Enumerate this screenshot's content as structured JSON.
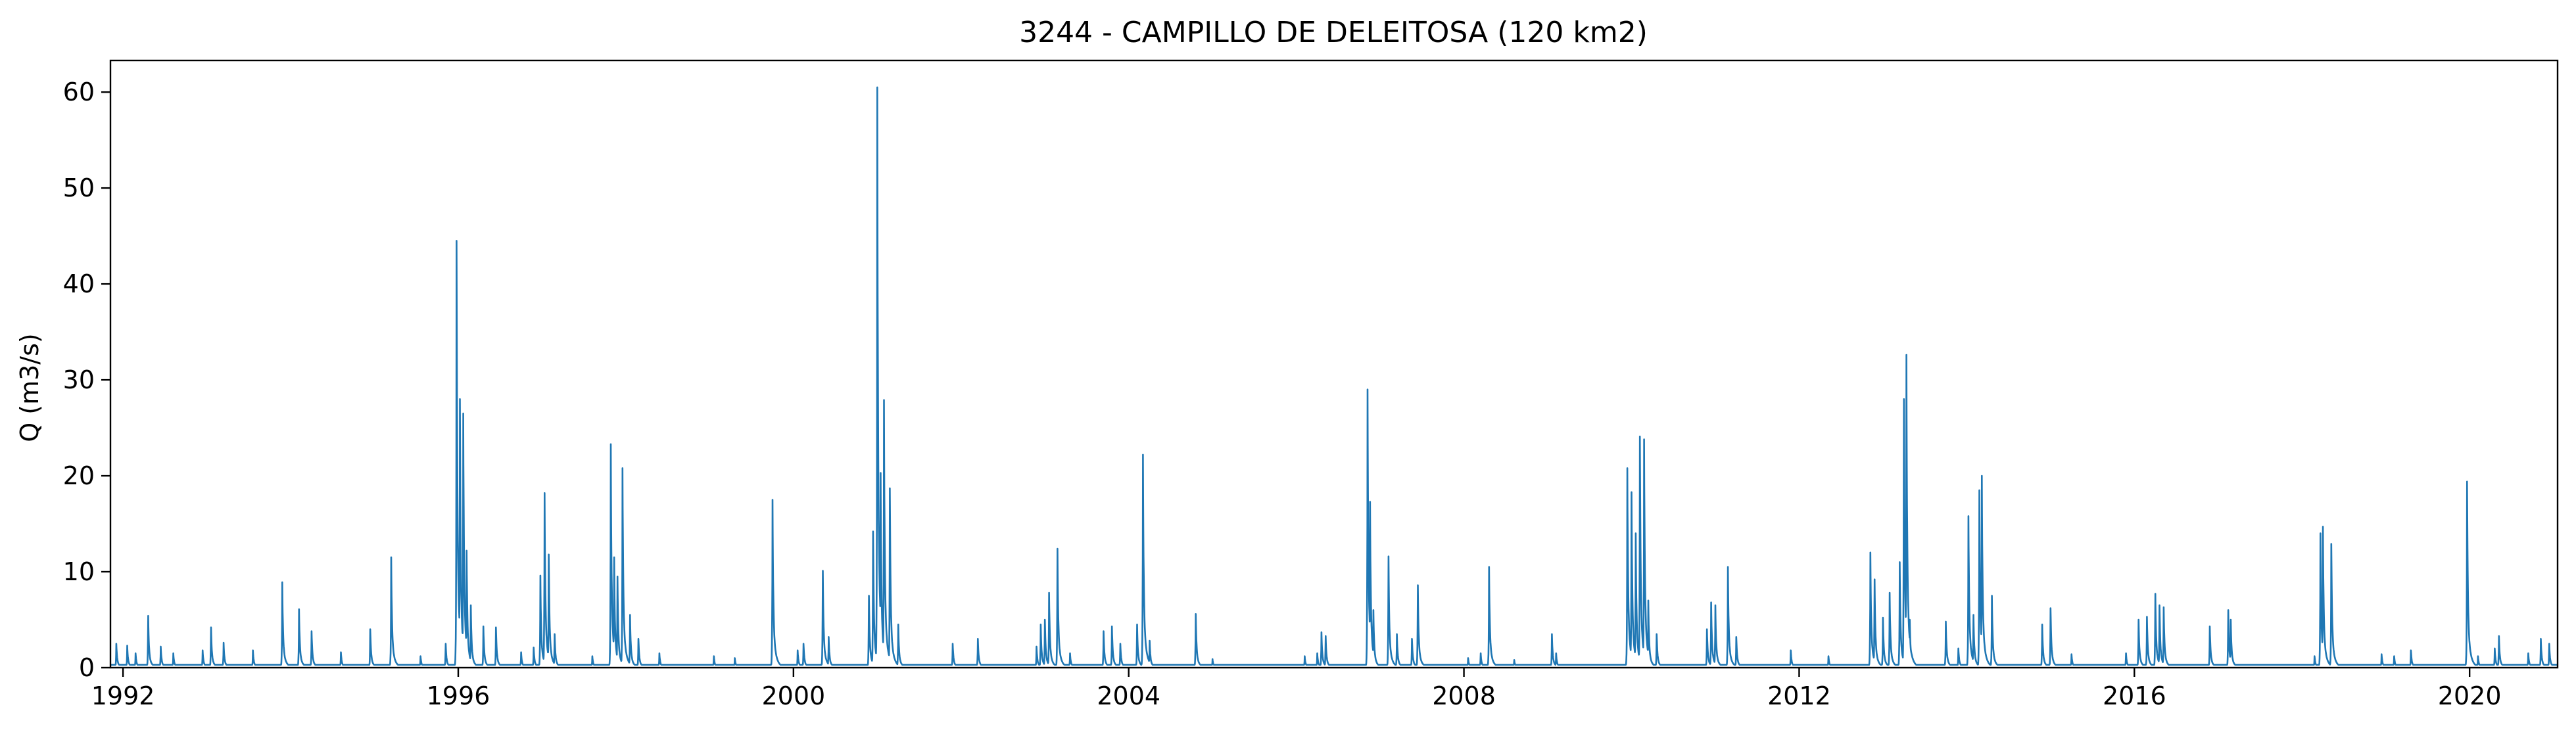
{
  "chart_data": {
    "type": "line",
    "title": "3244 - CAMPILLO DE DELEITOSA (120 km2)",
    "xlabel": "",
    "ylabel": "Q (m3/s)",
    "xlim": [
      1991.85,
      2021.05
    ],
    "ylim": [
      0,
      63.3
    ],
    "x_ticks": [
      1992,
      1996,
      2000,
      2004,
      2008,
      2012,
      2016,
      2020
    ],
    "x_tick_labels": [
      "1992",
      "1996",
      "2000",
      "2004",
      "2008",
      "2012",
      "2016",
      "2020"
    ],
    "y_ticks": [
      0,
      10,
      20,
      30,
      40,
      50,
      60
    ],
    "y_tick_labels": [
      "0",
      "10",
      "20",
      "30",
      "40",
      "50",
      "60"
    ],
    "grid": false,
    "legend": "none",
    "line_color": "#1f77b4",
    "baseflow": 0.3,
    "series": [
      {
        "name": "",
        "peaks": [
          [
            1991.92,
            2.5
          ],
          [
            1992.05,
            2.3
          ],
          [
            1992.15,
            1.5
          ],
          [
            1992.3,
            5.4
          ],
          [
            1992.45,
            2.2
          ],
          [
            1992.6,
            1.5
          ],
          [
            1992.95,
            1.8
          ],
          [
            1993.05,
            4.2
          ],
          [
            1993.2,
            2.6
          ],
          [
            1993.55,
            1.8
          ],
          [
            1993.9,
            8.9
          ],
          [
            1994.1,
            6.1
          ],
          [
            1994.25,
            3.8
          ],
          [
            1994.6,
            1.6
          ],
          [
            1994.95,
            4.0
          ],
          [
            1995.2,
            11.5
          ],
          [
            1995.55,
            1.2
          ],
          [
            1995.85,
            2.5
          ],
          [
            1995.98,
            44.5
          ],
          [
            1996.02,
            28.0
          ],
          [
            1996.06,
            26.5
          ],
          [
            1996.1,
            12.2
          ],
          [
            1996.15,
            6.5
          ],
          [
            1996.3,
            4.3
          ],
          [
            1996.45,
            4.2
          ],
          [
            1996.75,
            1.6
          ],
          [
            1996.9,
            2.1
          ],
          [
            1996.98,
            9.6
          ],
          [
            1997.03,
            18.2
          ],
          [
            1997.08,
            11.8
          ],
          [
            1997.15,
            3.5
          ],
          [
            1997.6,
            1.2
          ],
          [
            1997.82,
            23.3
          ],
          [
            1997.86,
            11.5
          ],
          [
            1997.9,
            9.5
          ],
          [
            1997.96,
            20.8
          ],
          [
            1998.05,
            5.5
          ],
          [
            1998.15,
            3.0
          ],
          [
            1998.4,
            1.5
          ],
          [
            1999.05,
            1.2
          ],
          [
            1999.3,
            1.0
          ],
          [
            1999.75,
            17.5
          ],
          [
            2000.05,
            1.8
          ],
          [
            2000.12,
            2.5
          ],
          [
            2000.35,
            10.1
          ],
          [
            2000.42,
            3.2
          ],
          [
            2000.9,
            7.5
          ],
          [
            2000.95,
            14.2
          ],
          [
            2001.0,
            60.5
          ],
          [
            2001.04,
            20.3
          ],
          [
            2001.08,
            27.9
          ],
          [
            2001.15,
            18.7
          ],
          [
            2001.25,
            4.5
          ],
          [
            2001.9,
            2.5
          ],
          [
            2002.2,
            3.0
          ],
          [
            2002.9,
            2.2
          ],
          [
            2002.95,
            4.5
          ],
          [
            2003.0,
            5.0
          ],
          [
            2003.05,
            7.8
          ],
          [
            2003.15,
            12.4
          ],
          [
            2003.3,
            1.5
          ],
          [
            2003.7,
            3.8
          ],
          [
            2003.8,
            4.3
          ],
          [
            2003.9,
            2.5
          ],
          [
            2004.1,
            4.5
          ],
          [
            2004.17,
            22.2
          ],
          [
            2004.25,
            2.8
          ],
          [
            2004.8,
            5.6
          ],
          [
            2005.0,
            0.9
          ],
          [
            2006.1,
            1.2
          ],
          [
            2006.25,
            1.5
          ],
          [
            2006.3,
            3.7
          ],
          [
            2006.35,
            3.3
          ],
          [
            2006.85,
            29.0
          ],
          [
            2006.88,
            17.3
          ],
          [
            2006.92,
            6.0
          ],
          [
            2007.1,
            11.6
          ],
          [
            2007.2,
            3.5
          ],
          [
            2007.38,
            3.0
          ],
          [
            2007.45,
            8.6
          ],
          [
            2008.05,
            1.0
          ],
          [
            2008.2,
            1.5
          ],
          [
            2008.3,
            10.5
          ],
          [
            2008.6,
            0.8
          ],
          [
            2009.05,
            3.5
          ],
          [
            2009.1,
            1.5
          ],
          [
            2009.95,
            20.8
          ],
          [
            2010.0,
            18.3
          ],
          [
            2010.05,
            14.0
          ],
          [
            2010.1,
            24.1
          ],
          [
            2010.15,
            23.8
          ],
          [
            2010.2,
            7.0
          ],
          [
            2010.3,
            3.5
          ],
          [
            2010.9,
            4.0
          ],
          [
            2010.95,
            6.8
          ],
          [
            2011.0,
            6.5
          ],
          [
            2011.15,
            10.5
          ],
          [
            2011.25,
            3.2
          ],
          [
            2011.9,
            1.8
          ],
          [
            2012.35,
            1.2
          ],
          [
            2012.85,
            12.0
          ],
          [
            2012.9,
            9.2
          ],
          [
            2013.0,
            5.2
          ],
          [
            2013.08,
            7.8
          ],
          [
            2013.2,
            11.0
          ],
          [
            2013.25,
            28.0
          ],
          [
            2013.28,
            32.6
          ],
          [
            2013.32,
            5.0
          ],
          [
            2013.75,
            4.8
          ],
          [
            2013.9,
            2.0
          ],
          [
            2014.02,
            15.8
          ],
          [
            2014.08,
            5.5
          ],
          [
            2014.15,
            18.5
          ],
          [
            2014.18,
            20.0
          ],
          [
            2014.3,
            7.5
          ],
          [
            2014.9,
            4.5
          ],
          [
            2015.0,
            6.2
          ],
          [
            2015.25,
            1.4
          ],
          [
            2015.9,
            1.5
          ],
          [
            2016.05,
            5.0
          ],
          [
            2016.15,
            5.3
          ],
          [
            2016.25,
            7.7
          ],
          [
            2016.3,
            6.5
          ],
          [
            2016.35,
            6.3
          ],
          [
            2016.9,
            4.3
          ],
          [
            2017.12,
            6.0
          ],
          [
            2017.15,
            5.0
          ],
          [
            2018.15,
            1.2
          ],
          [
            2018.22,
            14.0
          ],
          [
            2018.25,
            14.7
          ],
          [
            2018.35,
            12.9
          ],
          [
            2018.95,
            1.4
          ],
          [
            2019.1,
            1.2
          ],
          [
            2019.3,
            1.8
          ],
          [
            2019.97,
            19.4
          ],
          [
            2020.1,
            1.2
          ],
          [
            2020.3,
            2.0
          ],
          [
            2020.35,
            3.3
          ],
          [
            2020.7,
            1.5
          ],
          [
            2020.85,
            3.0
          ],
          [
            2020.95,
            2.5
          ]
        ]
      }
    ]
  }
}
